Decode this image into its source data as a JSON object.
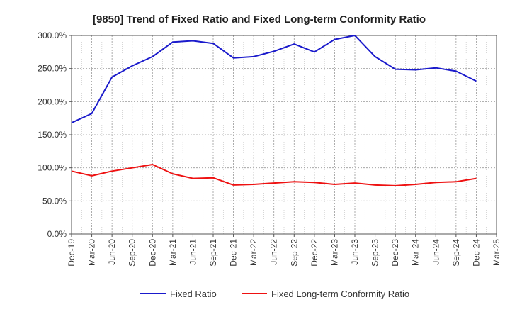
{
  "chart_data": {
    "type": "line",
    "title": "[9850]  Trend of Fixed Ratio and Fixed Long-term Conformity Ratio",
    "xlabel": "",
    "ylabel": "",
    "ylim": [
      0,
      300
    ],
    "y_ticks": [
      "0.0%",
      "50.0%",
      "100.0%",
      "150.0%",
      "200.0%",
      "250.0%",
      "300.0%"
    ],
    "x_tick_labels": [
      "Dec-19",
      "Mar-20",
      "Jun-20",
      "Sep-20",
      "Dec-20",
      "Mar-21",
      "Jun-21",
      "Sep-21",
      "Dec-21",
      "Mar-22",
      "Jun-22",
      "Sep-22",
      "Dec-22",
      "Mar-23",
      "Jun-23",
      "Sep-23",
      "Dec-23",
      "Mar-24",
      "Jun-24",
      "Sep-24",
      "Dec-24",
      "Mar-25"
    ],
    "x": [
      "Dec-19",
      "Mar-20",
      "Jun-20",
      "Sep-20",
      "Dec-20",
      "Mar-21",
      "Jun-21",
      "Sep-21",
      "Dec-21",
      "Mar-22",
      "Jun-22",
      "Sep-22",
      "Dec-22",
      "Mar-23",
      "Jun-23",
      "Sep-23",
      "Dec-23",
      "Mar-24",
      "Jun-24",
      "Sep-24",
      "Dec-24"
    ],
    "series": [
      {
        "name": "Fixed Ratio",
        "color": "#1a1acc",
        "values": [
          168,
          182,
          237,
          254,
          268,
          290,
          292,
          288,
          266,
          268,
          276,
          287,
          275,
          294,
          300,
          268,
          249,
          248,
          251,
          246,
          231
        ]
      },
      {
        "name": "Fixed Long-term Conformity Ratio",
        "color": "#ee1111",
        "values": [
          95,
          88,
          95,
          100,
          105,
          91,
          84,
          85,
          74,
          75,
          77,
          79,
          78,
          75,
          77,
          74,
          73,
          75,
          78,
          79,
          84
        ]
      }
    ],
    "grid": true,
    "legend_position": "bottom"
  }
}
